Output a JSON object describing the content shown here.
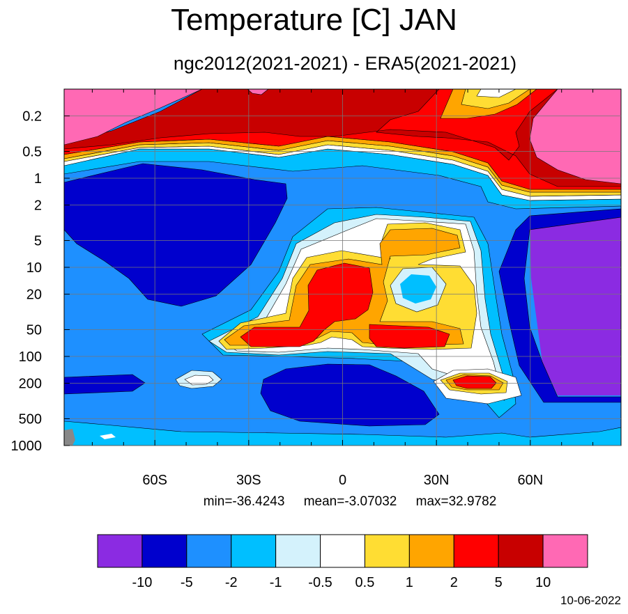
{
  "chart_data": {
    "type": "heatmap",
    "title": "Temperature [C] JAN",
    "subtitle": "ngc2012(2021-2021) - ERA5(2021-2021)",
    "x_ticks": [
      {
        "value": -60,
        "label": "60S"
      },
      {
        "value": -30,
        "label": "30S"
      },
      {
        "value": 0,
        "label": "0"
      },
      {
        "value": 30,
        "label": "30N"
      },
      {
        "value": 60,
        "label": "60N"
      }
    ],
    "y_ticks": [
      {
        "value": 0.2,
        "label": "0.2"
      },
      {
        "value": 0.5,
        "label": "0.5"
      },
      {
        "value": 1,
        "label": "1"
      },
      {
        "value": 2,
        "label": "2"
      },
      {
        "value": 5,
        "label": "5"
      },
      {
        "value": 10,
        "label": "10"
      },
      {
        "value": 20,
        "label": "20"
      },
      {
        "value": 50,
        "label": "50"
      },
      {
        "value": 100,
        "label": "100"
      },
      {
        "value": 200,
        "label": "200"
      },
      {
        "value": 500,
        "label": "500"
      },
      {
        "value": 1000,
        "label": "1000"
      }
    ],
    "xlim": [
      -89,
      89
    ],
    "ylim": [
      0.1,
      1000
    ],
    "y_scale": "log",
    "y_reversed": true,
    "grid": true,
    "contour_levels": [
      "-10",
      "-5",
      "-2",
      "-1",
      "-0.5",
      "0.5",
      "1",
      "2",
      "5",
      "10"
    ],
    "colors": [
      "#8b2be2",
      "#0000cd",
      "#1e90ff",
      "#00bfff",
      "#d4f2fc",
      "#ffffff",
      "#ffdd33",
      "#ffa500",
      "#ff0000",
      "#c80000",
      "#ff69b4"
    ],
    "stats": {
      "min": "min=-36.4243",
      "mean": "mean=-3.07032",
      "max": "max=32.9782"
    }
  },
  "date": "10-06-2022"
}
